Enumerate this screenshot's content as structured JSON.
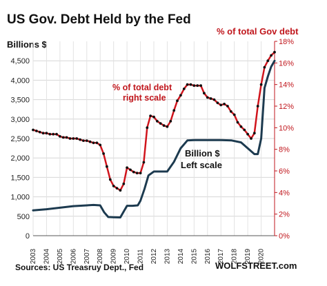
{
  "chart_data": {
    "type": "line",
    "title": "US Gov. Debt Held by the Fed",
    "ylabel_left": "Billions $",
    "ylabel_right": "% of total Gov debt",
    "ylim_left": [
      0,
      5000
    ],
    "yticks_left": [
      "0",
      "500",
      "1,000",
      "1,500",
      "2,000",
      "2,500",
      "3,000",
      "3,500",
      "4,000",
      "4,500"
    ],
    "ylim_right": [
      0,
      18
    ],
    "yticks_right": [
      "0%",
      "2%",
      "4%",
      "6%",
      "8%",
      "10%",
      "12%",
      "14%",
      "16%",
      "18%"
    ],
    "xlim": [
      2003,
      2021
    ],
    "xticks": [
      "2003",
      "2004",
      "2005",
      "2006",
      "2007",
      "2008",
      "2009",
      "2010",
      "2011",
      "2012",
      "2013",
      "2014",
      "2015",
      "2016",
      "2017",
      "2018",
      "2019",
      "2020"
    ],
    "grid": true,
    "series": [
      {
        "name": "Billion $",
        "axis": "left",
        "color": "#1c3a4f",
        "x": [
          2003.0,
          2004.0,
          2005.0,
          2006.0,
          2007.0,
          2007.5,
          2008.0,
          2008.3,
          2008.6,
          2009.0,
          2009.5,
          2010.0,
          2010.4,
          2010.8,
          2011.0,
          2011.3,
          2011.6,
          2012.0,
          2012.5,
          2013.0,
          2013.5,
          2014.0,
          2014.5,
          2015.0,
          2016.0,
          2017.0,
          2017.8,
          2018.5,
          2019.0,
          2019.5,
          2019.75,
          2020.0,
          2020.25,
          2020.5,
          2020.75,
          2021.0
        ],
        "y": [
          650,
          680,
          720,
          760,
          780,
          790,
          780,
          600,
          480,
          475,
          470,
          770,
          770,
          780,
          900,
          1200,
          1550,
          1650,
          1650,
          1650,
          1900,
          2250,
          2450,
          2460,
          2460,
          2460,
          2450,
          2400,
          2250,
          2100,
          2100,
          2500,
          3800,
          4100,
          4350,
          4500
        ]
      },
      {
        "name": "% of total debt",
        "axis": "right",
        "color": "#d0141c",
        "x": [
          2003.0,
          2003.25,
          2003.5,
          2003.75,
          2004.0,
          2004.25,
          2004.5,
          2004.75,
          2005.0,
          2005.25,
          2005.5,
          2005.75,
          2006.0,
          2006.25,
          2006.5,
          2006.75,
          2007.0,
          2007.25,
          2007.5,
          2007.75,
          2008.0,
          2008.25,
          2008.5,
          2008.75,
          2009.0,
          2009.25,
          2009.5,
          2009.75,
          2010.0,
          2010.25,
          2010.5,
          2010.75,
          2011.0,
          2011.25,
          2011.5,
          2011.75,
          2012.0,
          2012.25,
          2012.5,
          2012.75,
          2013.0,
          2013.25,
          2013.5,
          2013.75,
          2014.0,
          2014.25,
          2014.5,
          2014.75,
          2015.0,
          2015.25,
          2015.5,
          2015.75,
          2016.0,
          2016.25,
          2016.5,
          2016.75,
          2017.0,
          2017.25,
          2017.5,
          2017.75,
          2018.0,
          2018.25,
          2018.5,
          2018.75,
          2019.0,
          2019.25,
          2019.5,
          2019.75,
          2020.0,
          2020.25,
          2020.5,
          2020.75,
          2021.0
        ],
        "y": [
          9.8,
          9.7,
          9.6,
          9.5,
          9.5,
          9.4,
          9.4,
          9.4,
          9.2,
          9.1,
          9.1,
          9.0,
          9.0,
          9.0,
          8.9,
          8.8,
          8.8,
          8.7,
          8.6,
          8.6,
          8.4,
          7.6,
          6.4,
          5.2,
          4.6,
          4.4,
          4.2,
          4.8,
          6.3,
          6.1,
          5.9,
          5.8,
          5.8,
          6.8,
          10.0,
          11.1,
          11.0,
          10.6,
          10.4,
          10.2,
          10.1,
          10.6,
          11.6,
          12.5,
          13.0,
          13.6,
          14.0,
          14.0,
          13.9,
          13.9,
          13.9,
          13.2,
          12.8,
          12.7,
          12.6,
          12.3,
          12.1,
          12.2,
          12.0,
          11.5,
          11.2,
          10.5,
          10.1,
          9.8,
          9.4,
          9.0,
          9.5,
          12.0,
          14.0,
          15.6,
          16.2,
          16.7,
          17.0
        ]
      }
    ],
    "annotations": {
      "red_line1": "% of total debt",
      "red_line2": "right scale",
      "dark_line1": "Billion $",
      "dark_line2": "Left scale"
    },
    "source": "Sources: US Treasruy Dept., Fed",
    "brand": "WOLFSTREET.com"
  }
}
